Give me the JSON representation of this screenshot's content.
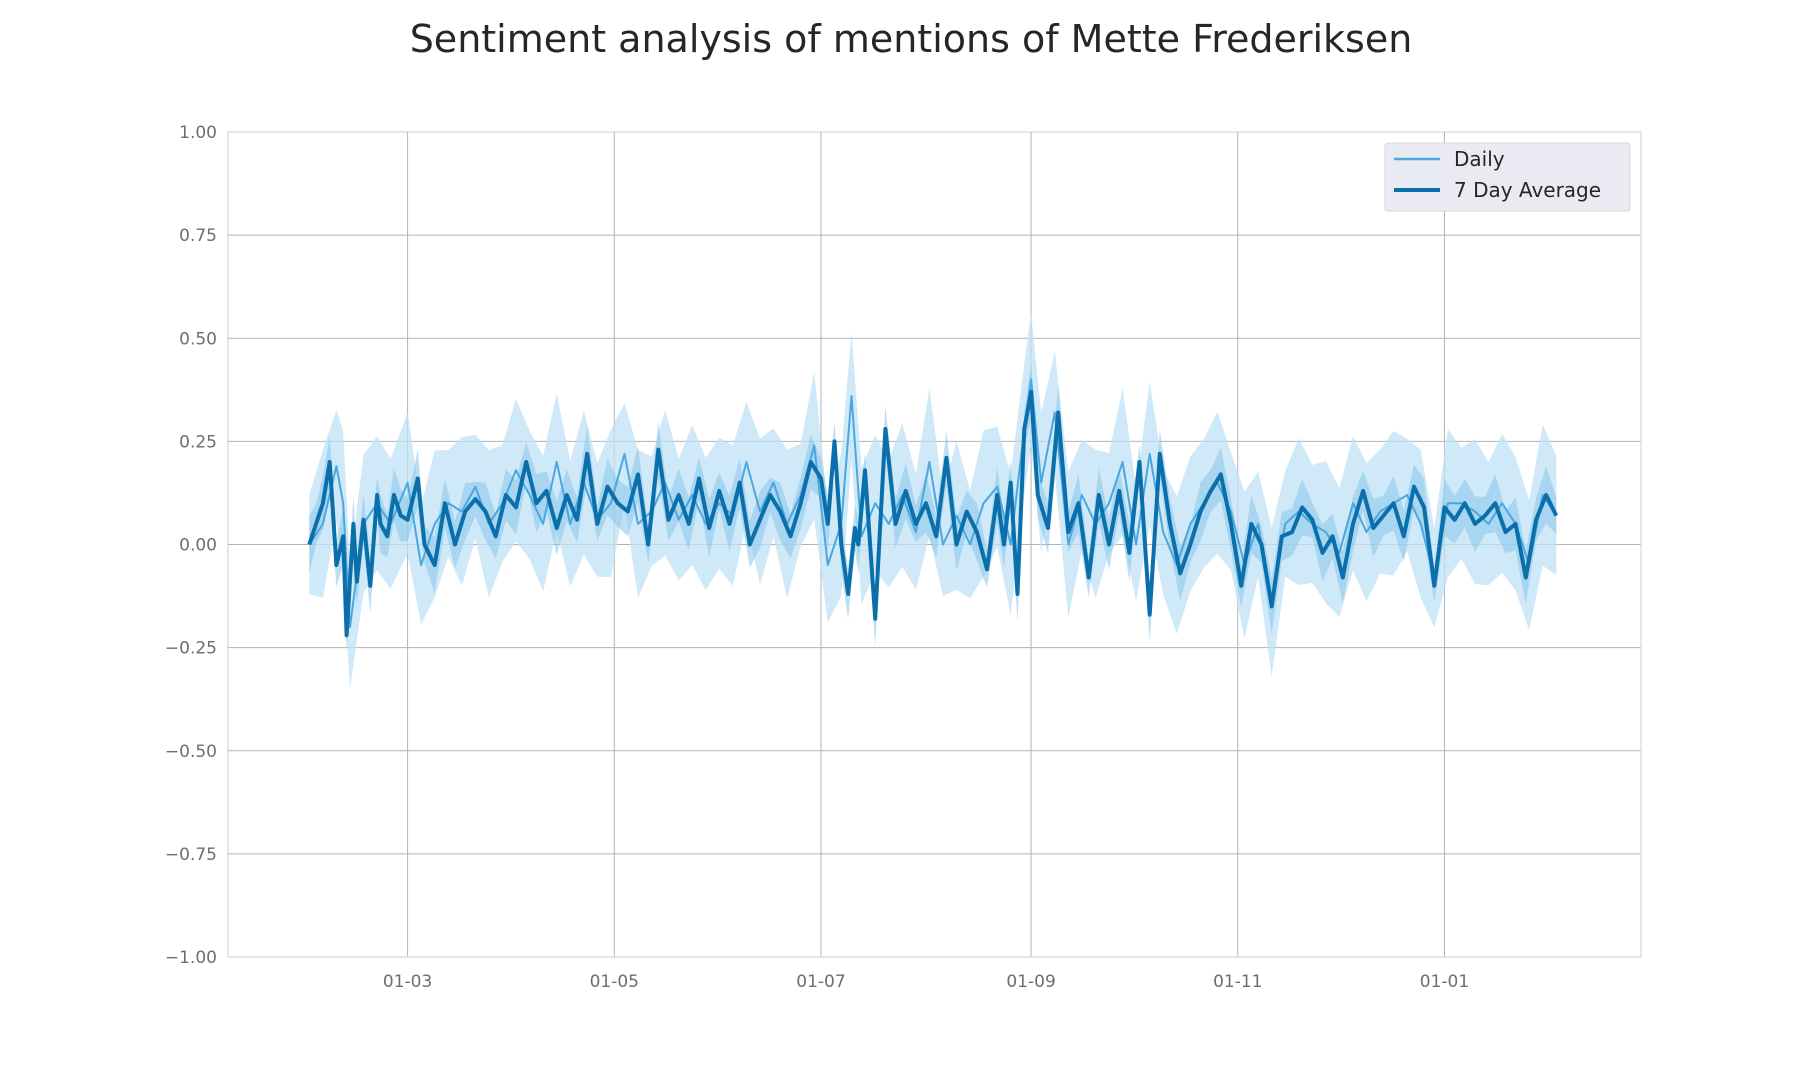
{
  "chart_data": {
    "type": "line",
    "title": "Sentiment analysis of mentions of Mette Frederiksen",
    "xlabel": "",
    "ylabel": "",
    "ylim": [
      -1.0,
      1.0
    ],
    "y_ticks": [
      1.0,
      0.75,
      0.5,
      0.25,
      0.0,
      -0.25,
      -0.5,
      -0.75,
      -1.0
    ],
    "y_tick_labels": [
      "1.00",
      "0.75",
      "0.50",
      "0.25",
      "0.00",
      "−0.25",
      "−0.50",
      "−0.75",
      "−1.00"
    ],
    "x_range": [
      "2020-01-08",
      "2021-02-28"
    ],
    "x_ticks": [
      {
        "date": "2020-03-01",
        "label": "01-03"
      },
      {
        "date": "2020-05-01",
        "label": "01-05"
      },
      {
        "date": "2020-07-01",
        "label": "01-07"
      },
      {
        "date": "2020-09-01",
        "label": "01-09"
      },
      {
        "date": "2020-11-01",
        "label": "01-11"
      },
      {
        "date": "2021-01-01",
        "label": "01-01"
      }
    ],
    "grid": true,
    "legend_position": "top-right",
    "colors": {
      "daily": "#4aa8e0",
      "average": "#0a6fab",
      "band_daily": "#bfe1f5",
      "band_average": "#89c4e8",
      "grid": "#b3b3b3",
      "frame": "#cccccc",
      "legend_bg": "#eaeaf2"
    },
    "series": [
      {
        "name": "Daily",
        "x": [
          "2020-02-01",
          "2020-02-05",
          "2020-02-09",
          "2020-02-11",
          "2020-02-13",
          "2020-02-17",
          "2020-02-21",
          "2020-02-25",
          "2020-03-01",
          "2020-03-05",
          "2020-03-09",
          "2020-03-13",
          "2020-03-17",
          "2020-03-21",
          "2020-03-25",
          "2020-03-29",
          "2020-04-02",
          "2020-04-06",
          "2020-04-10",
          "2020-04-14",
          "2020-04-18",
          "2020-04-22",
          "2020-04-26",
          "2020-04-30",
          "2020-05-04",
          "2020-05-08",
          "2020-05-12",
          "2020-05-16",
          "2020-05-20",
          "2020-05-24",
          "2020-05-28",
          "2020-06-01",
          "2020-06-05",
          "2020-06-09",
          "2020-06-13",
          "2020-06-17",
          "2020-06-21",
          "2020-06-25",
          "2020-06-29",
          "2020-07-03",
          "2020-07-07",
          "2020-07-10",
          "2020-07-13",
          "2020-07-17",
          "2020-07-21",
          "2020-07-25",
          "2020-07-29",
          "2020-08-02",
          "2020-08-06",
          "2020-08-10",
          "2020-08-14",
          "2020-08-18",
          "2020-08-22",
          "2020-08-26",
          "2020-08-30",
          "2020-09-01",
          "2020-09-04",
          "2020-09-08",
          "2020-09-12",
          "2020-09-16",
          "2020-09-20",
          "2020-09-24",
          "2020-09-28",
          "2020-10-02",
          "2020-10-06",
          "2020-10-10",
          "2020-10-14",
          "2020-10-18",
          "2020-10-22",
          "2020-10-26",
          "2020-10-30",
          "2020-11-03",
          "2020-11-07",
          "2020-11-11",
          "2020-11-15",
          "2020-11-19",
          "2020-11-23",
          "2020-11-27",
          "2020-12-01",
          "2020-12-05",
          "2020-12-09",
          "2020-12-13",
          "2020-12-17",
          "2020-12-21",
          "2020-12-25",
          "2020-12-29",
          "2021-01-02",
          "2021-01-06",
          "2021-01-10",
          "2021-01-14",
          "2021-01-18",
          "2021-01-22",
          "2021-01-26",
          "2021-01-30",
          "2021-02-03"
        ],
        "y": [
          0.0,
          0.05,
          0.19,
          0.1,
          -0.2,
          0.05,
          0.1,
          0.05,
          0.15,
          -0.05,
          0.05,
          0.1,
          0.08,
          0.14,
          0.05,
          0.1,
          0.18,
          0.12,
          0.05,
          0.2,
          0.05,
          0.15,
          0.06,
          0.1,
          0.22,
          0.05,
          0.08,
          0.15,
          0.06,
          0.12,
          0.05,
          0.1,
          0.07,
          0.2,
          0.08,
          0.15,
          0.05,
          0.12,
          0.24,
          -0.05,
          0.05,
          0.36,
          0.02,
          0.1,
          0.05,
          0.12,
          0.03,
          0.2,
          0.0,
          0.07,
          0.0,
          0.1,
          0.14,
          0.0,
          0.28,
          0.4,
          0.15,
          0.32,
          0.0,
          0.12,
          0.05,
          0.1,
          0.2,
          0.0,
          0.22,
          0.03,
          -0.05,
          0.05,
          0.1,
          0.15,
          0.08,
          -0.05,
          0.05,
          -0.14,
          0.05,
          0.08,
          0.05,
          0.03,
          -0.02,
          0.1,
          0.03,
          0.08,
          0.1,
          0.12,
          0.05,
          -0.08,
          0.1,
          0.1,
          0.08,
          0.05,
          0.1,
          0.05,
          -0.05,
          0.12,
          0.07
        ]
      },
      {
        "name": "7 Day Average",
        "x": [
          "2020-02-01",
          "2020-02-03",
          "2020-02-05",
          "2020-02-07",
          "2020-02-09",
          "2020-02-11",
          "2020-02-12",
          "2020-02-14",
          "2020-02-15",
          "2020-02-17",
          "2020-02-19",
          "2020-02-21",
          "2020-02-22",
          "2020-02-24",
          "2020-02-26",
          "2020-02-28",
          "2020-03-01",
          "2020-03-04",
          "2020-03-06",
          "2020-03-09",
          "2020-03-12",
          "2020-03-15",
          "2020-03-18",
          "2020-03-21",
          "2020-03-24",
          "2020-03-27",
          "2020-03-30",
          "2020-04-02",
          "2020-04-05",
          "2020-04-08",
          "2020-04-11",
          "2020-04-14",
          "2020-04-17",
          "2020-04-20",
          "2020-04-23",
          "2020-04-26",
          "2020-04-29",
          "2020-05-02",
          "2020-05-05",
          "2020-05-08",
          "2020-05-11",
          "2020-05-14",
          "2020-05-17",
          "2020-05-20",
          "2020-05-23",
          "2020-05-26",
          "2020-05-29",
          "2020-06-01",
          "2020-06-04",
          "2020-06-07",
          "2020-06-10",
          "2020-06-13",
          "2020-06-16",
          "2020-06-19",
          "2020-06-22",
          "2020-06-25",
          "2020-06-28",
          "2020-07-01",
          "2020-07-03",
          "2020-07-05",
          "2020-07-07",
          "2020-07-09",
          "2020-07-11",
          "2020-07-12",
          "2020-07-14",
          "2020-07-17",
          "2020-07-20",
          "2020-07-23",
          "2020-07-26",
          "2020-07-29",
          "2020-08-01",
          "2020-08-04",
          "2020-08-07",
          "2020-08-10",
          "2020-08-13",
          "2020-08-16",
          "2020-08-19",
          "2020-08-22",
          "2020-08-24",
          "2020-08-26",
          "2020-08-28",
          "2020-08-30",
          "2020-09-01",
          "2020-09-03",
          "2020-09-06",
          "2020-09-09",
          "2020-09-12",
          "2020-09-15",
          "2020-09-18",
          "2020-09-21",
          "2020-09-24",
          "2020-09-27",
          "2020-09-30",
          "2020-10-03",
          "2020-10-06",
          "2020-10-09",
          "2020-10-12",
          "2020-10-15",
          "2020-10-18",
          "2020-10-21",
          "2020-10-24",
          "2020-10-27",
          "2020-10-30",
          "2020-11-02",
          "2020-11-05",
          "2020-11-08",
          "2020-11-11",
          "2020-11-14",
          "2020-11-17",
          "2020-11-20",
          "2020-11-23",
          "2020-11-26",
          "2020-11-29",
          "2020-12-02",
          "2020-12-05",
          "2020-12-08",
          "2020-12-11",
          "2020-12-14",
          "2020-12-17",
          "2020-12-20",
          "2020-12-23",
          "2020-12-26",
          "2020-12-29",
          "2021-01-01",
          "2021-01-04",
          "2021-01-07",
          "2021-01-10",
          "2021-01-13",
          "2021-01-16",
          "2021-01-19",
          "2021-01-22",
          "2021-01-25",
          "2021-01-28",
          "2021-01-31",
          "2021-02-03"
        ],
        "y": [
          0.0,
          0.05,
          0.1,
          0.2,
          -0.05,
          0.02,
          -0.22,
          0.05,
          -0.09,
          0.06,
          -0.1,
          0.12,
          0.05,
          0.02,
          0.12,
          0.07,
          0.06,
          0.16,
          0.0,
          -0.05,
          0.1,
          0.0,
          0.08,
          0.11,
          0.08,
          0.02,
          0.12,
          0.09,
          0.2,
          0.1,
          0.13,
          0.04,
          0.12,
          0.06,
          0.22,
          0.05,
          0.14,
          0.1,
          0.08,
          0.17,
          0.0,
          0.23,
          0.06,
          0.12,
          0.05,
          0.16,
          0.04,
          0.13,
          0.05,
          0.15,
          0.0,
          0.06,
          0.12,
          0.08,
          0.02,
          0.1,
          0.2,
          0.16,
          0.05,
          0.25,
          0.0,
          -0.12,
          0.04,
          0.0,
          0.18,
          -0.18,
          0.28,
          0.05,
          0.13,
          0.05,
          0.1,
          0.02,
          0.21,
          0.0,
          0.08,
          0.03,
          -0.06,
          0.12,
          0.0,
          0.15,
          -0.12,
          0.28,
          0.37,
          0.12,
          0.04,
          0.32,
          0.03,
          0.1,
          -0.08,
          0.12,
          0.0,
          0.13,
          -0.02,
          0.2,
          -0.17,
          0.22,
          0.05,
          -0.07,
          0.0,
          0.08,
          0.13,
          0.17,
          0.05,
          -0.1,
          0.05,
          0.0,
          -0.15,
          0.02,
          0.03,
          0.09,
          0.06,
          -0.02,
          0.02,
          -0.08,
          0.05,
          0.13,
          0.04,
          0.07,
          0.1,
          0.02,
          0.14,
          0.09,
          -0.1,
          0.09,
          0.06,
          0.1,
          0.05,
          0.07,
          0.1,
          0.03,
          0.05,
          -0.08,
          0.06,
          0.12,
          0.07
        ]
      }
    ]
  }
}
